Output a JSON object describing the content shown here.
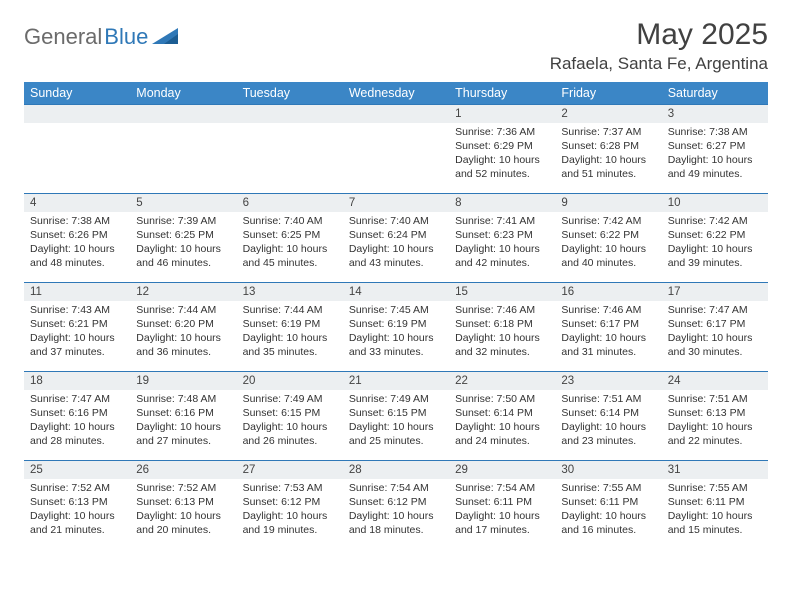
{
  "logo": {
    "text_gray": "General",
    "text_blue": "Blue"
  },
  "title": "May 2025",
  "location": "Rafaela, Santa Fe, Argentina",
  "colors": {
    "header_bg": "#3b86c6",
    "border": "#2f78b7",
    "daynum_bg": "#eceff1",
    "text": "#333333",
    "title_text": "#414141",
    "logo_gray": "#6b6b6b",
    "logo_blue": "#2f78b7"
  },
  "days_of_week": [
    "Sunday",
    "Monday",
    "Tuesday",
    "Wednesday",
    "Thursday",
    "Friday",
    "Saturday"
  ],
  "weeks": [
    [
      null,
      null,
      null,
      null,
      {
        "n": "1",
        "sr": "Sunrise: 7:36 AM",
        "ss": "Sunset: 6:29 PM",
        "dl": "Daylight: 10 hours and 52 minutes."
      },
      {
        "n": "2",
        "sr": "Sunrise: 7:37 AM",
        "ss": "Sunset: 6:28 PM",
        "dl": "Daylight: 10 hours and 51 minutes."
      },
      {
        "n": "3",
        "sr": "Sunrise: 7:38 AM",
        "ss": "Sunset: 6:27 PM",
        "dl": "Daylight: 10 hours and 49 minutes."
      }
    ],
    [
      {
        "n": "4",
        "sr": "Sunrise: 7:38 AM",
        "ss": "Sunset: 6:26 PM",
        "dl": "Daylight: 10 hours and 48 minutes."
      },
      {
        "n": "5",
        "sr": "Sunrise: 7:39 AM",
        "ss": "Sunset: 6:25 PM",
        "dl": "Daylight: 10 hours and 46 minutes."
      },
      {
        "n": "6",
        "sr": "Sunrise: 7:40 AM",
        "ss": "Sunset: 6:25 PM",
        "dl": "Daylight: 10 hours and 45 minutes."
      },
      {
        "n": "7",
        "sr": "Sunrise: 7:40 AM",
        "ss": "Sunset: 6:24 PM",
        "dl": "Daylight: 10 hours and 43 minutes."
      },
      {
        "n": "8",
        "sr": "Sunrise: 7:41 AM",
        "ss": "Sunset: 6:23 PM",
        "dl": "Daylight: 10 hours and 42 minutes."
      },
      {
        "n": "9",
        "sr": "Sunrise: 7:42 AM",
        "ss": "Sunset: 6:22 PM",
        "dl": "Daylight: 10 hours and 40 minutes."
      },
      {
        "n": "10",
        "sr": "Sunrise: 7:42 AM",
        "ss": "Sunset: 6:22 PM",
        "dl": "Daylight: 10 hours and 39 minutes."
      }
    ],
    [
      {
        "n": "11",
        "sr": "Sunrise: 7:43 AM",
        "ss": "Sunset: 6:21 PM",
        "dl": "Daylight: 10 hours and 37 minutes."
      },
      {
        "n": "12",
        "sr": "Sunrise: 7:44 AM",
        "ss": "Sunset: 6:20 PM",
        "dl": "Daylight: 10 hours and 36 minutes."
      },
      {
        "n": "13",
        "sr": "Sunrise: 7:44 AM",
        "ss": "Sunset: 6:19 PM",
        "dl": "Daylight: 10 hours and 35 minutes."
      },
      {
        "n": "14",
        "sr": "Sunrise: 7:45 AM",
        "ss": "Sunset: 6:19 PM",
        "dl": "Daylight: 10 hours and 33 minutes."
      },
      {
        "n": "15",
        "sr": "Sunrise: 7:46 AM",
        "ss": "Sunset: 6:18 PM",
        "dl": "Daylight: 10 hours and 32 minutes."
      },
      {
        "n": "16",
        "sr": "Sunrise: 7:46 AM",
        "ss": "Sunset: 6:17 PM",
        "dl": "Daylight: 10 hours and 31 minutes."
      },
      {
        "n": "17",
        "sr": "Sunrise: 7:47 AM",
        "ss": "Sunset: 6:17 PM",
        "dl": "Daylight: 10 hours and 30 minutes."
      }
    ],
    [
      {
        "n": "18",
        "sr": "Sunrise: 7:47 AM",
        "ss": "Sunset: 6:16 PM",
        "dl": "Daylight: 10 hours and 28 minutes."
      },
      {
        "n": "19",
        "sr": "Sunrise: 7:48 AM",
        "ss": "Sunset: 6:16 PM",
        "dl": "Daylight: 10 hours and 27 minutes."
      },
      {
        "n": "20",
        "sr": "Sunrise: 7:49 AM",
        "ss": "Sunset: 6:15 PM",
        "dl": "Daylight: 10 hours and 26 minutes."
      },
      {
        "n": "21",
        "sr": "Sunrise: 7:49 AM",
        "ss": "Sunset: 6:15 PM",
        "dl": "Daylight: 10 hours and 25 minutes."
      },
      {
        "n": "22",
        "sr": "Sunrise: 7:50 AM",
        "ss": "Sunset: 6:14 PM",
        "dl": "Daylight: 10 hours and 24 minutes."
      },
      {
        "n": "23",
        "sr": "Sunrise: 7:51 AM",
        "ss": "Sunset: 6:14 PM",
        "dl": "Daylight: 10 hours and 23 minutes."
      },
      {
        "n": "24",
        "sr": "Sunrise: 7:51 AM",
        "ss": "Sunset: 6:13 PM",
        "dl": "Daylight: 10 hours and 22 minutes."
      }
    ],
    [
      {
        "n": "25",
        "sr": "Sunrise: 7:52 AM",
        "ss": "Sunset: 6:13 PM",
        "dl": "Daylight: 10 hours and 21 minutes."
      },
      {
        "n": "26",
        "sr": "Sunrise: 7:52 AM",
        "ss": "Sunset: 6:13 PM",
        "dl": "Daylight: 10 hours and 20 minutes."
      },
      {
        "n": "27",
        "sr": "Sunrise: 7:53 AM",
        "ss": "Sunset: 6:12 PM",
        "dl": "Daylight: 10 hours and 19 minutes."
      },
      {
        "n": "28",
        "sr": "Sunrise: 7:54 AM",
        "ss": "Sunset: 6:12 PM",
        "dl": "Daylight: 10 hours and 18 minutes."
      },
      {
        "n": "29",
        "sr": "Sunrise: 7:54 AM",
        "ss": "Sunset: 6:11 PM",
        "dl": "Daylight: 10 hours and 17 minutes."
      },
      {
        "n": "30",
        "sr": "Sunrise: 7:55 AM",
        "ss": "Sunset: 6:11 PM",
        "dl": "Daylight: 10 hours and 16 minutes."
      },
      {
        "n": "31",
        "sr": "Sunrise: 7:55 AM",
        "ss": "Sunset: 6:11 PM",
        "dl": "Daylight: 10 hours and 15 minutes."
      }
    ]
  ]
}
